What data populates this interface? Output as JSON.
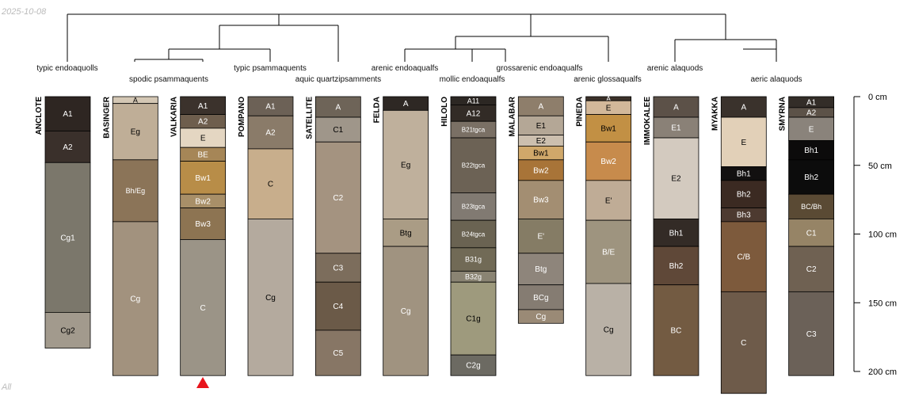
{
  "date_stamp": "2025-10-08",
  "corner_label": "All",
  "taxonomy_labels": [
    "typic endoaquolls",
    "spodic psammaquents",
    "typic psammaquents",
    "aquic quartzipsamments",
    "arenic endoaqualfs",
    "mollic endoaqualfs",
    "grossarenic endoaqualfs",
    "arenic glossaqualfs",
    "arenic alaquods",
    "aeric alaquods"
  ],
  "depth_axis": {
    "unit": "cm",
    "ticks": [
      "0 cm",
      "50 cm",
      "100 cm",
      "150 cm",
      "200 cm"
    ],
    "tick_values": [
      0,
      50,
      100,
      150,
      200
    ]
  },
  "marker": {
    "profile": "VALKARIA",
    "shape": "triangle",
    "color": "#e8141c"
  },
  "profiles": [
    {
      "name": "ANCLOTE",
      "horizons": [
        {
          "name": "A1",
          "top": 0,
          "bottom": 25,
          "color": "#2e2622"
        },
        {
          "name": "A2",
          "top": 25,
          "bottom": 48,
          "color": "#3a302b"
        },
        {
          "name": "Cg1",
          "top": 48,
          "bottom": 157,
          "color": "#7b776b"
        },
        {
          "name": "Cg2",
          "top": 157,
          "bottom": 183,
          "color": "#a29a8d"
        }
      ]
    },
    {
      "name": "BASINGER",
      "horizons": [
        {
          "name": "A",
          "top": 0,
          "bottom": 5,
          "color": "#d4c7b4"
        },
        {
          "name": "Eg",
          "top": 5,
          "bottom": 46,
          "color": "#bfae97"
        },
        {
          "name": "Bh/Eg",
          "top": 46,
          "bottom": 91,
          "color": "#8b7458"
        },
        {
          "name": "Cg",
          "top": 91,
          "bottom": 203,
          "color": "#a2927e"
        }
      ]
    },
    {
      "name": "VALKARIA",
      "horizons": [
        {
          "name": "A1",
          "top": 0,
          "bottom": 13,
          "color": "#3b322c"
        },
        {
          "name": "A2",
          "top": 13,
          "bottom": 23,
          "color": "#6e5e4d"
        },
        {
          "name": "E",
          "top": 23,
          "bottom": 37,
          "color": "#e4d6c2"
        },
        {
          "name": "BE",
          "top": 37,
          "bottom": 47,
          "color": "#a68657"
        },
        {
          "name": "Bw1",
          "top": 47,
          "bottom": 71,
          "color": "#b88d48"
        },
        {
          "name": "Bw2",
          "top": 71,
          "bottom": 81,
          "color": "#a88f68"
        },
        {
          "name": "Bw3",
          "top": 81,
          "bottom": 104,
          "color": "#8d7452"
        },
        {
          "name": "C",
          "top": 104,
          "bottom": 203,
          "color": "#9b9487"
        }
      ]
    },
    {
      "name": "POMPANO",
      "horizons": [
        {
          "name": "A1",
          "top": 0,
          "bottom": 14,
          "color": "#6c6156"
        },
        {
          "name": "A2",
          "top": 14,
          "bottom": 38,
          "color": "#8a7b69"
        },
        {
          "name": "C",
          "top": 38,
          "bottom": 89,
          "color": "#c8ae8c"
        },
        {
          "name": "Cg",
          "top": 89,
          "bottom": 203,
          "color": "#b4aa9e"
        }
      ]
    },
    {
      "name": "SATELLITE",
      "horizons": [
        {
          "name": "A",
          "top": 0,
          "bottom": 15,
          "color": "#6e6458"
        },
        {
          "name": "C1",
          "top": 15,
          "bottom": 33,
          "color": "#9f968a"
        },
        {
          "name": "C2",
          "top": 33,
          "bottom": 114,
          "color": "#a49380"
        },
        {
          "name": "C3",
          "top": 114,
          "bottom": 135,
          "color": "#7c6d5c"
        },
        {
          "name": "C4",
          "top": 135,
          "bottom": 170,
          "color": "#6b5a48"
        },
        {
          "name": "C5",
          "top": 170,
          "bottom": 203,
          "color": "#877665"
        }
      ]
    },
    {
      "name": "FELDA",
      "horizons": [
        {
          "name": "A",
          "top": 0,
          "bottom": 10,
          "color": "#2e2824"
        },
        {
          "name": "Eg",
          "top": 10,
          "bottom": 89,
          "color": "#bfb09c"
        },
        {
          "name": "Btg",
          "top": 89,
          "bottom": 109,
          "color": "#aa9c85"
        },
        {
          "name": "Cg",
          "top": 109,
          "bottom": 203,
          "color": "#a09380"
        }
      ]
    },
    {
      "name": "HILOLO",
      "horizons": [
        {
          "name": "A11",
          "top": 0,
          "bottom": 6,
          "color": "#2c2723"
        },
        {
          "name": "A12",
          "top": 6,
          "bottom": 18,
          "color": "#322b26"
        },
        {
          "name": "B21tgca",
          "top": 18,
          "bottom": 30,
          "color": "#7a7065"
        },
        {
          "name": "B22tgca",
          "top": 30,
          "bottom": 70,
          "color": "#6c6255"
        },
        {
          "name": "B23tgca",
          "top": 70,
          "bottom": 90,
          "color": "#817a72"
        },
        {
          "name": "B24tgca",
          "top": 90,
          "bottom": 110,
          "color": "#6a6352"
        },
        {
          "name": "B31g",
          "top": 110,
          "bottom": 127,
          "color": "#716a56"
        },
        {
          "name": "B32g",
          "top": 127,
          "bottom": 135,
          "color": "#8a8473"
        },
        {
          "name": "C1g",
          "top": 135,
          "bottom": 188,
          "color": "#9e9a7d"
        },
        {
          "name": "C2g",
          "top": 188,
          "bottom": 203,
          "color": "#6c6a62"
        }
      ]
    },
    {
      "name": "MALABAR",
      "horizons": [
        {
          "name": "A",
          "top": 0,
          "bottom": 14,
          "color": "#8e7e6b"
        },
        {
          "name": "E1",
          "top": 14,
          "bottom": 28,
          "color": "#b4a796"
        },
        {
          "name": "E2",
          "top": 28,
          "bottom": 36,
          "color": "#ccbfae"
        },
        {
          "name": "Bw1",
          "top": 36,
          "bottom": 46,
          "color": "#d0a86a"
        },
        {
          "name": "Bw2",
          "top": 46,
          "bottom": 61,
          "color": "#a87438"
        },
        {
          "name": "Bw3",
          "top": 61,
          "bottom": 89,
          "color": "#a38e72"
        },
        {
          "name": "E'",
          "top": 89,
          "bottom": 114,
          "color": "#857c65"
        },
        {
          "name": "Btg",
          "top": 114,
          "bottom": 137,
          "color": "#8e857b"
        },
        {
          "name": "BCg",
          "top": 137,
          "bottom": 155,
          "color": "#857c72"
        },
        {
          "name": "Cg",
          "top": 155,
          "bottom": 165,
          "color": "#9a8a76"
        }
      ]
    },
    {
      "name": "PINEDA",
      "horizons": [
        {
          "name": "A",
          "top": 0,
          "bottom": 3,
          "color": "#3c322a"
        },
        {
          "name": "E",
          "top": 3,
          "bottom": 13,
          "color": "#d2b89a"
        },
        {
          "name": "Bw1",
          "top": 13,
          "bottom": 33,
          "color": "#c29044"
        },
        {
          "name": "Bw2",
          "top": 33,
          "bottom": 61,
          "color": "#c78b4c"
        },
        {
          "name": "E'",
          "top": 61,
          "bottom": 90,
          "color": "#bfac96"
        },
        {
          "name": "B/E",
          "top": 90,
          "bottom": 136,
          "color": "#9e947f"
        },
        {
          "name": "Cg",
          "top": 136,
          "bottom": 203,
          "color": "#b9b1a6"
        }
      ]
    },
    {
      "name": "IMMOKALEE",
      "horizons": [
        {
          "name": "A",
          "top": 0,
          "bottom": 15,
          "color": "#5c5148"
        },
        {
          "name": "E1",
          "top": 15,
          "bottom": 30,
          "color": "#8a8177"
        },
        {
          "name": "E2",
          "top": 30,
          "bottom": 89,
          "color": "#d3cabf"
        },
        {
          "name": "Bh1",
          "top": 89,
          "bottom": 109,
          "color": "#332b26"
        },
        {
          "name": "Bh2",
          "top": 109,
          "bottom": 137,
          "color": "#5f4838"
        },
        {
          "name": "BC",
          "top": 137,
          "bottom": 203,
          "color": "#735b42"
        }
      ]
    },
    {
      "name": "MYAKKA",
      "horizons": [
        {
          "name": "A",
          "top": 0,
          "bottom": 15,
          "color": "#3a322c"
        },
        {
          "name": "E",
          "top": 15,
          "bottom": 51,
          "color": "#e2d0b8"
        },
        {
          "name": "Bh1",
          "top": 51,
          "bottom": 61,
          "color": "#121010"
        },
        {
          "name": "Bh2",
          "top": 61,
          "bottom": 81,
          "color": "#3b2a22"
        },
        {
          "name": "Bh3",
          "top": 81,
          "bottom": 91,
          "color": "#4d3a30"
        },
        {
          "name": "C/B",
          "top": 91,
          "bottom": 142,
          "color": "#7d5a3c"
        },
        {
          "name": "C",
          "top": 142,
          "bottom": 216,
          "color": "#6e5b4a"
        }
      ]
    },
    {
      "name": "SMYRNA",
      "horizons": [
        {
          "name": "A1",
          "top": 0,
          "bottom": 8,
          "color": "#332d28"
        },
        {
          "name": "A2",
          "top": 8,
          "bottom": 15,
          "color": "#5c5248"
        },
        {
          "name": "E",
          "top": 15,
          "bottom": 32,
          "color": "#8a837b"
        },
        {
          "name": "Bh1",
          "top": 32,
          "bottom": 46,
          "color": "#0c0b0b"
        },
        {
          "name": "Bh2",
          "top": 46,
          "bottom": 71,
          "color": "#0c0c0c"
        },
        {
          "name": "BC/Bh",
          "top": 71,
          "bottom": 89,
          "color": "#5a4a34"
        },
        {
          "name": "C1",
          "top": 89,
          "bottom": 109,
          "color": "#968466"
        },
        {
          "name": "C2",
          "top": 109,
          "bottom": 142,
          "color": "#6f6152"
        },
        {
          "name": "C3",
          "top": 142,
          "bottom": 203,
          "color": "#6b6158"
        }
      ]
    }
  ]
}
